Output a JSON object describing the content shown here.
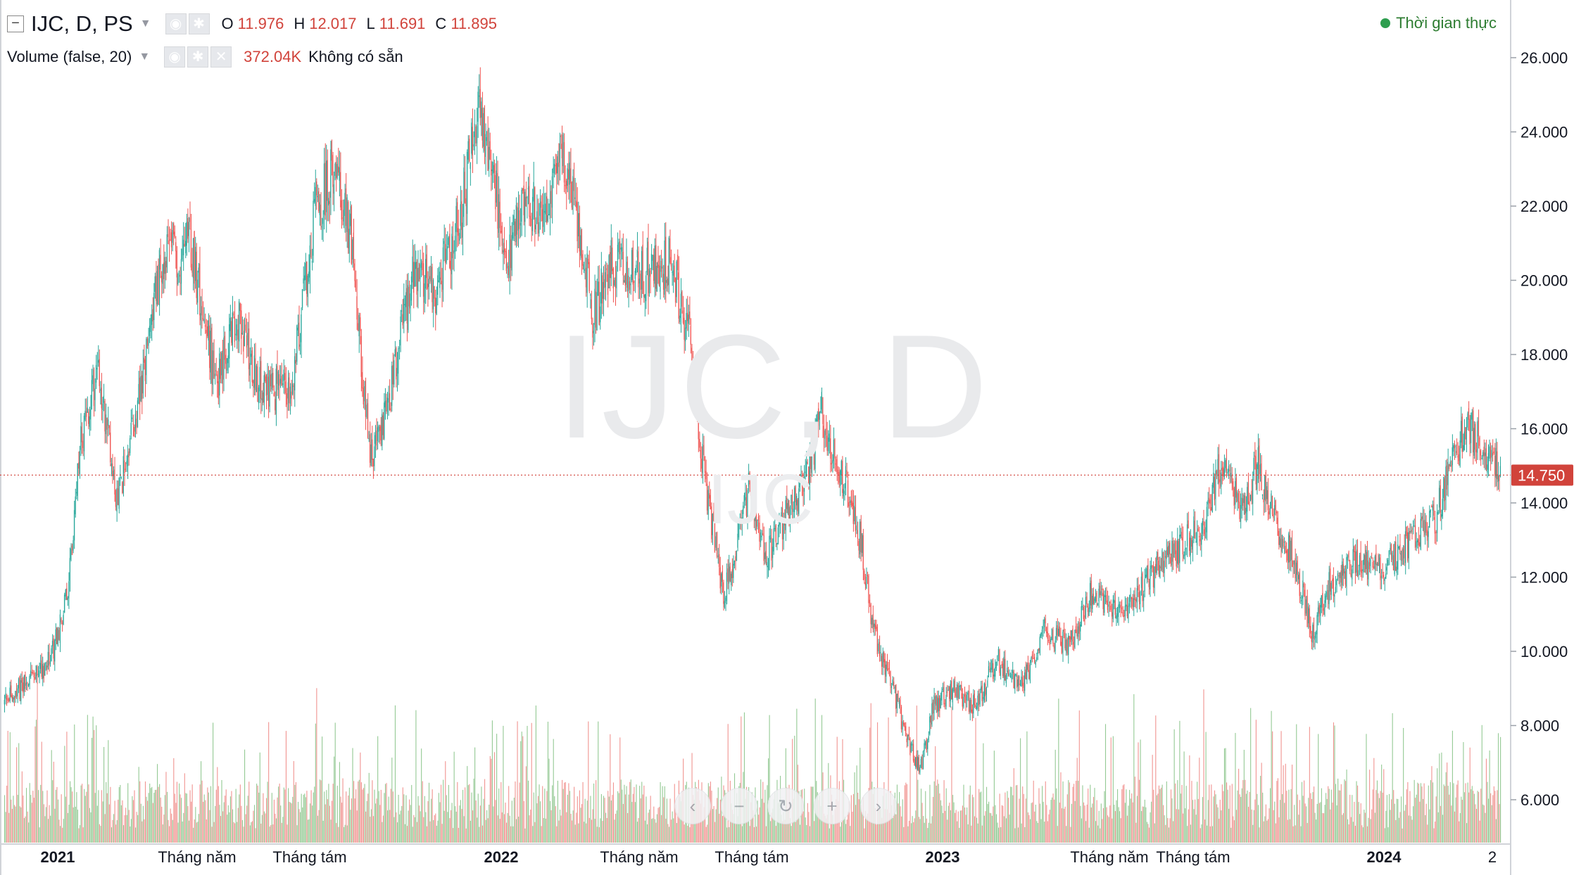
{
  "header": {
    "symbol": "IJC, D, PS",
    "ohlc": [
      {
        "label": "O",
        "value": "11.976"
      },
      {
        "label": "H",
        "value": "12.017"
      },
      {
        "label": "L",
        "value": "11.691"
      },
      {
        "label": "C",
        "value": "11.895"
      }
    ],
    "volume_label": "Volume (false, 20)",
    "volume_value": "372.04K",
    "volume_status": "Không có sẵn",
    "realtime": "Thời gian thực"
  },
  "watermark": {
    "main": "IJC, D",
    "sub": "IJC"
  },
  "colors": {
    "up": "#26a69a",
    "down": "#ef5350",
    "vol_up": "#8ac48a",
    "vol_down": "#f08a86",
    "last_price_bg": "#d1433b"
  },
  "icons": [
    "collapse-icon",
    "eye-icon",
    "gear-icon",
    "close-icon",
    "chevron-left-icon",
    "zoom-out-icon",
    "reset-icon",
    "zoom-in-icon",
    "chevron-right-icon"
  ],
  "chart_data": {
    "type": "candlestick",
    "y_ticks": [
      "26.000",
      "24.000",
      "22.000",
      "20.000",
      "18.000",
      "16.000",
      "14.000",
      "12.000",
      "10.000",
      "8.000",
      "6.000"
    ],
    "y_range": [
      4.5,
      27.0
    ],
    "last_price": "14.750",
    "last_price_value": 14.75,
    "x_ticks": [
      "2021",
      "Tháng năm",
      "Tháng tám",
      "2022",
      "Tháng năm",
      "Tháng tám",
      "2023",
      "Tháng năm",
      "Tháng tám",
      "2024",
      "2"
    ],
    "bold_x_ticks": [
      "2021",
      "2022",
      "2023",
      "2024"
    ],
    "price_path": [
      {
        "date": "2020-11-01",
        "close": 8.6
      },
      {
        "date": "2020-12-10",
        "close": 9.7
      },
      {
        "date": "2020-12-25",
        "close": 11.5
      },
      {
        "date": "2021-01-05",
        "close": 15.5
      },
      {
        "date": "2021-01-20",
        "close": 17.7
      },
      {
        "date": "2021-02-05",
        "close": 14.2
      },
      {
        "date": "2021-02-20",
        "close": 16.0
      },
      {
        "date": "2021-03-15",
        "close": 20.5
      },
      {
        "date": "2021-04-10",
        "close": 21.0
      },
      {
        "date": "2021-05-01",
        "close": 17.2
      },
      {
        "date": "2021-05-20",
        "close": 19.0
      },
      {
        "date": "2021-06-10",
        "close": 16.9
      },
      {
        "date": "2021-07-05",
        "close": 17.3
      },
      {
        "date": "2021-07-25",
        "close": 21.8
      },
      {
        "date": "2021-08-10",
        "close": 23.0
      },
      {
        "date": "2021-08-25",
        "close": 21.0
      },
      {
        "date": "2021-09-10",
        "close": 15.0
      },
      {
        "date": "2021-09-25",
        "close": 16.5
      },
      {
        "date": "2021-10-15",
        "close": 20.0
      },
      {
        "date": "2021-11-05",
        "close": 19.8
      },
      {
        "date": "2021-11-25",
        "close": 21.5
      },
      {
        "date": "2021-12-10",
        "close": 24.5
      },
      {
        "date": "2021-12-22",
        "close": 23.5
      },
      {
        "date": "2022-01-05",
        "close": 20.2
      },
      {
        "date": "2022-01-20",
        "close": 22.5
      },
      {
        "date": "2022-02-05",
        "close": 21.5
      },
      {
        "date": "2022-02-20",
        "close": 23.5
      },
      {
        "date": "2022-03-05",
        "close": 22.0
      },
      {
        "date": "2022-03-20",
        "close": 19.0
      },
      {
        "date": "2022-04-05",
        "close": 20.5
      },
      {
        "date": "2022-05-05",
        "close": 20.2
      },
      {
        "date": "2022-05-25",
        "close": 20.5
      },
      {
        "date": "2022-06-10",
        "close": 18.5
      },
      {
        "date": "2022-06-25",
        "close": 14.2
      },
      {
        "date": "2022-07-10",
        "close": 11.5
      },
      {
        "date": "2022-07-20",
        "close": 12.8
      },
      {
        "date": "2022-08-01",
        "close": 14.5
      },
      {
        "date": "2022-08-15",
        "close": 12.5
      },
      {
        "date": "2022-08-30",
        "close": 13.5
      },
      {
        "date": "2022-09-20",
        "close": 14.8
      },
      {
        "date": "2022-10-01",
        "close": 16.5
      },
      {
        "date": "2022-10-12",
        "close": 15.2
      },
      {
        "date": "2022-10-25",
        "close": 14.3
      },
      {
        "date": "2022-11-05",
        "close": 12.8
      },
      {
        "date": "2022-11-15",
        "close": 10.5
      },
      {
        "date": "2022-12-01",
        "close": 9.0
      },
      {
        "date": "2022-12-15",
        "close": 7.5
      },
      {
        "date": "2022-12-25",
        "close": 6.8
      },
      {
        "date": "2023-01-05",
        "close": 8.5
      },
      {
        "date": "2023-01-20",
        "close": 9.0
      },
      {
        "date": "2023-02-10",
        "close": 8.5
      },
      {
        "date": "2023-03-01",
        "close": 9.8
      },
      {
        "date": "2023-03-20",
        "close": 9.0
      },
      {
        "date": "2023-04-10",
        "close": 10.5
      },
      {
        "date": "2023-05-01",
        "close": 10.2
      },
      {
        "date": "2023-05-20",
        "close": 11.5
      },
      {
        "date": "2023-06-15",
        "close": 11.0
      },
      {
        "date": "2023-07-10",
        "close": 12.0
      },
      {
        "date": "2023-08-05",
        "close": 12.8
      },
      {
        "date": "2023-08-25",
        "close": 13.5
      },
      {
        "date": "2023-09-10",
        "close": 15.2
      },
      {
        "date": "2023-09-25",
        "close": 13.8
      },
      {
        "date": "2023-10-10",
        "close": 15.0
      },
      {
        "date": "2023-10-25",
        "close": 13.5
      },
      {
        "date": "2023-11-10",
        "close": 12.5
      },
      {
        "date": "2023-11-25",
        "close": 10.5
      },
      {
        "date": "2023-12-10",
        "close": 11.8
      },
      {
        "date": "2024-01-05",
        "close": 12.5
      },
      {
        "date": "2024-01-25",
        "close": 12.3
      },
      {
        "date": "2024-02-20",
        "close": 13.0
      },
      {
        "date": "2024-03-10",
        "close": 13.6
      },
      {
        "date": "2024-03-25",
        "close": 15.2
      },
      {
        "date": "2024-04-05",
        "close": 16.2
      },
      {
        "date": "2024-04-20",
        "close": 15.5
      },
      {
        "date": "2024-05-05",
        "close": 14.75
      }
    ]
  }
}
